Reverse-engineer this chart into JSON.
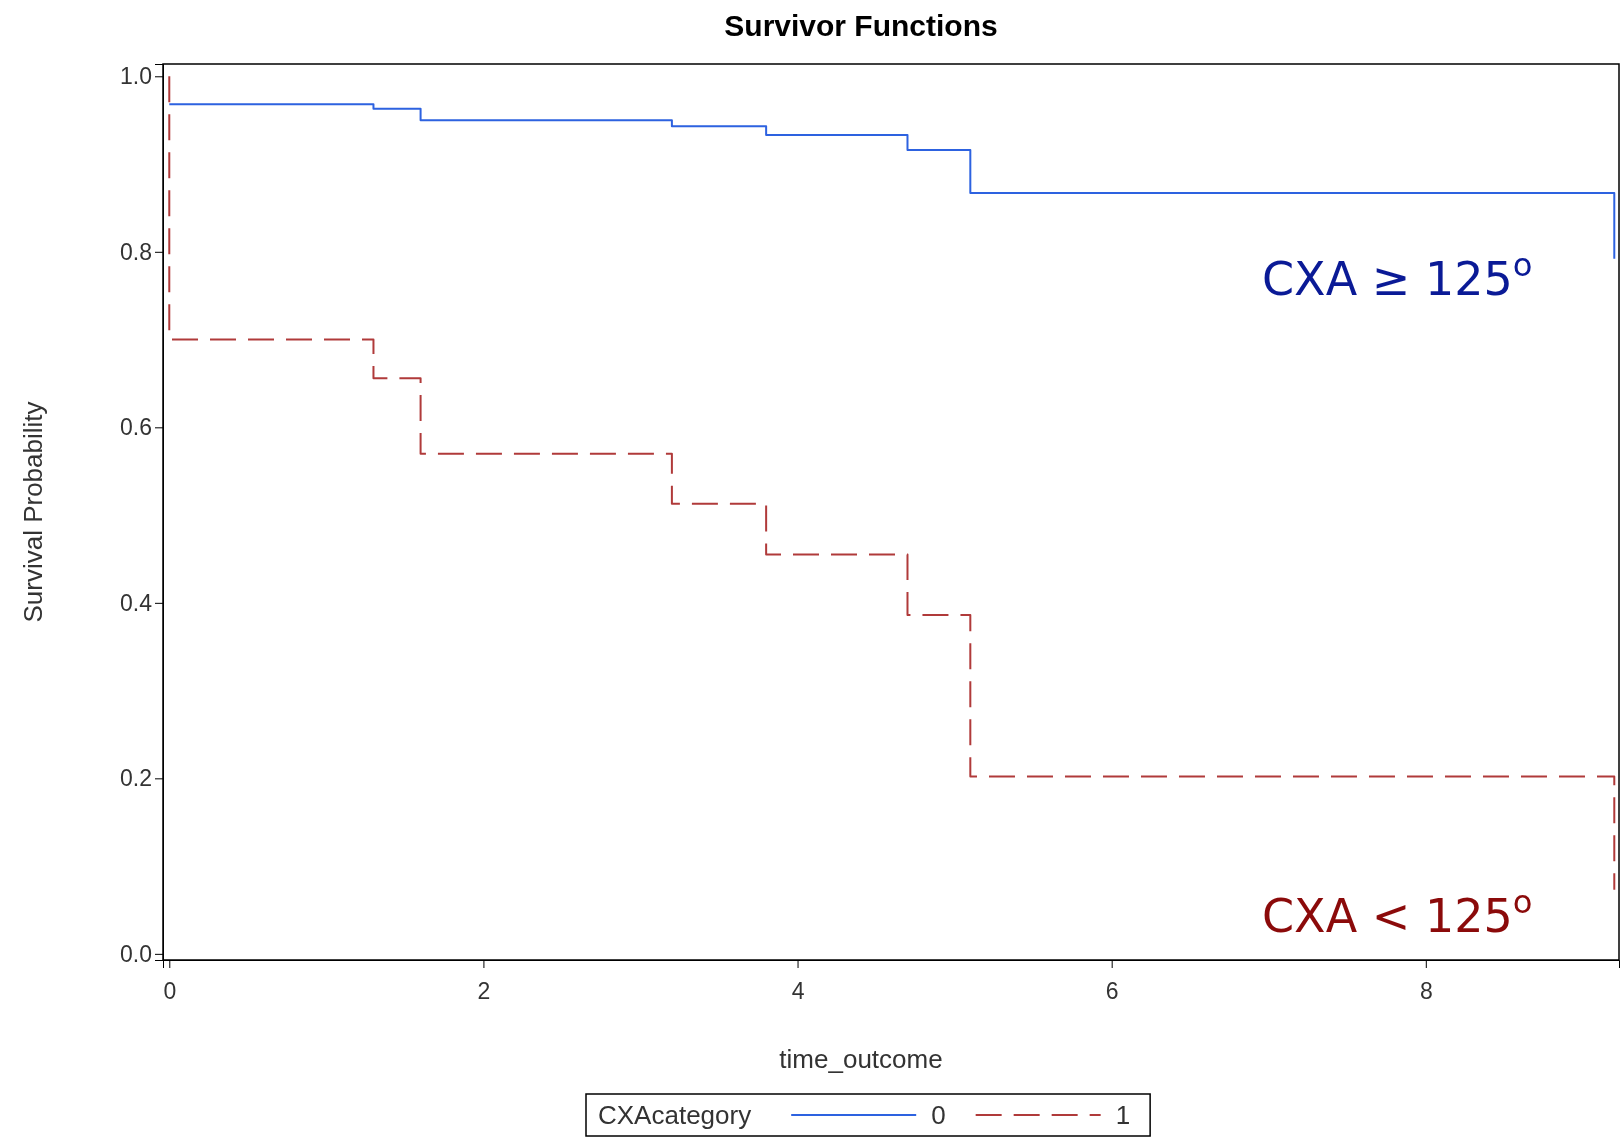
{
  "chart_data": {
    "type": "step",
    "title": "Survivor Functions",
    "xlabel": "time_outcome",
    "ylabel": "Survival Probability",
    "legend_title": "CXAcategory",
    "xlim": [
      -0.04,
      9.23
    ],
    "xticks": [
      0,
      2,
      4,
      6,
      8
    ],
    "ylim": [
      -0.007,
      1.014
    ],
    "yticks": [
      {
        "value": 0,
        "label": "0.0"
      },
      0.2,
      0.4,
      0.6,
      0.8,
      {
        "value": 1,
        "label": "1.0"
      }
    ],
    "series": [
      {
        "name": "0",
        "color": "#2d62e0",
        "line_style": "solid",
        "x": [
          0,
          1.3,
          1.6,
          3.2,
          3.8,
          4.7,
          5.1,
          9.2
        ],
        "values": [
          0.968,
          0.963,
          0.95,
          0.943,
          0.933,
          0.916,
          0.867,
          0.792
        ]
      },
      {
        "name": "1",
        "color": "#b03a3a",
        "line_style": "dashed",
        "x": [
          0,
          0,
          1.3,
          1.6,
          3.2,
          3.8,
          4.7,
          5.1,
          9.2
        ],
        "values": [
          1,
          0.7,
          0.656,
          0.57,
          0.513,
          0.455,
          0.386,
          0.202,
          0.073
        ]
      }
    ],
    "annotations": [
      "CXA ≥ 125$^{o}$",
      "CXA < 125$^{o}$"
    ],
    "legend": "bottom",
    "grid": false
  }
}
